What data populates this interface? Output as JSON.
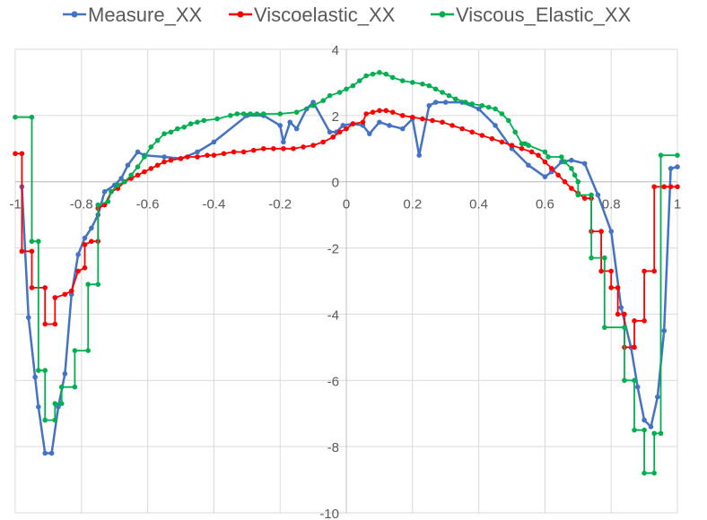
{
  "chart_data": {
    "type": "line",
    "title": "",
    "xlabel": "",
    "ylabel": "",
    "xlim": [
      -1,
      1
    ],
    "ylim": [
      -10,
      4
    ],
    "grid": true,
    "legend_position": "top",
    "x_ticks": [
      "-1",
      "-0.8",
      "-0.6",
      "-0.4",
      "-0.2",
      "0",
      "0.2",
      "0.4",
      "0.6",
      "0.8",
      "1"
    ],
    "y_ticks": [
      "4",
      "2",
      "0",
      "-2",
      "-4",
      "-6",
      "-8",
      "-10"
    ],
    "series": [
      {
        "name": "Measure_XX",
        "color": "#4472C4",
        "x": [
          -0.98,
          -0.96,
          -0.94,
          -0.93,
          -0.91,
          -0.89,
          -0.87,
          -0.85,
          -0.83,
          -0.81,
          -0.79,
          -0.77,
          -0.75,
          -0.73,
          -0.7,
          -0.68,
          -0.66,
          -0.63,
          -0.61,
          -0.55,
          -0.5,
          -0.45,
          -0.4,
          -0.3,
          -0.25,
          -0.2,
          -0.19,
          -0.17,
          -0.15,
          -0.12,
          -0.1,
          -0.05,
          -0.03,
          -0.01,
          0.02,
          0.05,
          0.07,
          0.1,
          0.13,
          0.17,
          0.2,
          0.22,
          0.25,
          0.27,
          0.3,
          0.35,
          0.4,
          0.45,
          0.5,
          0.55,
          0.6,
          0.62,
          0.65,
          0.68,
          0.72,
          0.76,
          0.8,
          0.83,
          0.86,
          0.88,
          0.9,
          0.92,
          0.94,
          0.96,
          0.98,
          1.0
        ],
        "values": [
          -0.15,
          -4.1,
          -5.9,
          -6.8,
          -8.2,
          -8.2,
          -6.8,
          -5.8,
          -3.4,
          -2.2,
          -1.7,
          -1.4,
          -1.0,
          -0.3,
          -0.1,
          0.1,
          0.5,
          0.9,
          0.8,
          0.75,
          0.7,
          0.9,
          1.2,
          2.0,
          2.0,
          1.7,
          1.2,
          1.8,
          1.6,
          2.2,
          2.4,
          1.5,
          1.5,
          1.7,
          1.75,
          1.7,
          1.45,
          1.8,
          1.7,
          1.6,
          1.9,
          0.8,
          2.3,
          2.4,
          2.4,
          2.4,
          2.2,
          1.7,
          1.0,
          0.5,
          0.15,
          0.3,
          0.6,
          0.65,
          0.55,
          -0.4,
          -1.5,
          -3.8,
          -5.0,
          -6.2,
          -7.2,
          -7.4,
          -6.5,
          -4.5,
          0.4,
          0.45
        ]
      },
      {
        "name": "Viscoelastic_XX",
        "color": "#FF0000",
        "x": [
          -1.0,
          -0.98,
          -0.98,
          -0.95,
          -0.95,
          -0.91,
          -0.91,
          -0.88,
          -0.88,
          -0.85,
          -0.83,
          -0.81,
          -0.79,
          -0.79,
          -0.77,
          -0.75,
          -0.75,
          -0.73,
          -0.71,
          -0.69,
          -0.67,
          -0.65,
          -0.63,
          -0.61,
          -0.59,
          -0.57,
          -0.55,
          -0.53,
          -0.5,
          -0.48,
          -0.45,
          -0.42,
          -0.4,
          -0.37,
          -0.34,
          -0.31,
          -0.28,
          -0.25,
          -0.22,
          -0.19,
          -0.16,
          -0.13,
          -0.1,
          -0.07,
          -0.04,
          -0.02,
          0.0,
          0.02,
          0.05,
          0.06,
          0.08,
          0.1,
          0.12,
          0.14,
          0.17,
          0.2,
          0.23,
          0.26,
          0.29,
          0.32,
          0.35,
          0.38,
          0.41,
          0.44,
          0.47,
          0.5,
          0.53,
          0.56,
          0.58,
          0.6,
          0.62,
          0.64,
          0.66,
          0.68,
          0.7,
          0.72,
          0.74,
          0.74,
          0.77,
          0.77,
          0.8,
          0.8,
          0.82,
          0.82,
          0.84,
          0.84,
          0.87,
          0.87,
          0.9,
          0.9,
          0.93,
          0.93,
          0.96,
          0.96,
          0.98,
          1.0
        ],
        "values": [
          0.85,
          0.85,
          -2.1,
          -2.1,
          -3.2,
          -3.2,
          -4.3,
          -4.3,
          -3.5,
          -3.4,
          -3.3,
          -2.7,
          -2.6,
          -1.9,
          -1.8,
          -1.8,
          -0.8,
          -0.7,
          -0.3,
          -0.2,
          0.0,
          0.1,
          0.2,
          0.3,
          0.4,
          0.5,
          0.6,
          0.65,
          0.7,
          0.75,
          0.75,
          0.8,
          0.8,
          0.85,
          0.9,
          0.9,
          0.95,
          1.0,
          1.0,
          1.0,
          1.0,
          1.05,
          1.1,
          1.2,
          1.35,
          1.5,
          1.6,
          1.75,
          1.8,
          2.05,
          2.1,
          2.15,
          2.15,
          2.1,
          2.0,
          1.95,
          1.9,
          1.85,
          1.8,
          1.7,
          1.6,
          1.5,
          1.4,
          1.3,
          1.2,
          1.1,
          1.0,
          0.9,
          0.8,
          0.6,
          0.4,
          0.2,
          0.0,
          -0.2,
          -0.35,
          -0.5,
          -0.5,
          -1.5,
          -1.5,
          -2.7,
          -2.7,
          -3.2,
          -3.2,
          -4.0,
          -4.0,
          -5.0,
          -5.0,
          -4.2,
          -4.2,
          -2.7,
          -2.7,
          -0.15,
          -0.15,
          -0.15,
          -0.15,
          -0.15
        ]
      },
      {
        "name": "Viscous_Elastic_XX",
        "color": "#00B050",
        "x": [
          -1.0,
          -0.95,
          -0.95,
          -0.93,
          -0.93,
          -0.91,
          -0.91,
          -0.88,
          -0.88,
          -0.86,
          -0.86,
          -0.82,
          -0.82,
          -0.78,
          -0.78,
          -0.75,
          -0.75,
          -0.72,
          -0.71,
          -0.69,
          -0.67,
          -0.65,
          -0.63,
          -0.61,
          -0.59,
          -0.57,
          -0.55,
          -0.53,
          -0.51,
          -0.49,
          -0.47,
          -0.45,
          -0.43,
          -0.39,
          -0.35,
          -0.33,
          -0.31,
          -0.29,
          -0.27,
          -0.25,
          -0.2,
          -0.15,
          -0.1,
          -0.07,
          -0.05,
          -0.02,
          0.0,
          0.02,
          0.04,
          0.06,
          0.08,
          0.1,
          0.12,
          0.14,
          0.17,
          0.2,
          0.23,
          0.25,
          0.27,
          0.29,
          0.31,
          0.33,
          0.36,
          0.38,
          0.41,
          0.43,
          0.45,
          0.47,
          0.49,
          0.51,
          0.53,
          0.54,
          0.55,
          0.6,
          0.61,
          0.65,
          0.66,
          0.68,
          0.69,
          0.7,
          0.7,
          0.74,
          0.74,
          0.78,
          0.78,
          0.84,
          0.84,
          0.87,
          0.87,
          0.9,
          0.9,
          0.93,
          0.93,
          0.95,
          0.95,
          1.0
        ],
        "values": [
          1.95,
          1.95,
          -1.8,
          -1.8,
          -5.7,
          -5.7,
          -7.2,
          -7.2,
          -6.7,
          -6.7,
          -6.2,
          -6.2,
          -5.1,
          -5.1,
          -3.1,
          -3.1,
          -0.7,
          -0.6,
          -0.3,
          -0.1,
          0.0,
          0.2,
          0.45,
          0.75,
          1.05,
          1.25,
          1.45,
          1.5,
          1.6,
          1.65,
          1.75,
          1.8,
          1.85,
          1.9,
          2.0,
          2.05,
          2.05,
          2.05,
          2.05,
          2.05,
          2.05,
          2.1,
          2.3,
          2.45,
          2.6,
          2.7,
          2.8,
          2.9,
          3.05,
          3.2,
          3.25,
          3.3,
          3.25,
          3.15,
          3.05,
          3.0,
          2.95,
          2.9,
          2.8,
          2.7,
          2.6,
          2.5,
          2.4,
          2.35,
          2.3,
          2.25,
          2.2,
          2.05,
          1.85,
          1.5,
          1.15,
          1.15,
          1.1,
          0.9,
          0.75,
          0.75,
          0.6,
          0.4,
          0.2,
          0.0,
          -0.4,
          -0.4,
          -2.3,
          -2.3,
          -4.4,
          -4.4,
          -6.0,
          -6.0,
          -7.5,
          -7.5,
          -8.8,
          -8.8,
          -7.6,
          -7.6,
          0.8,
          0.8
        ]
      }
    ]
  }
}
